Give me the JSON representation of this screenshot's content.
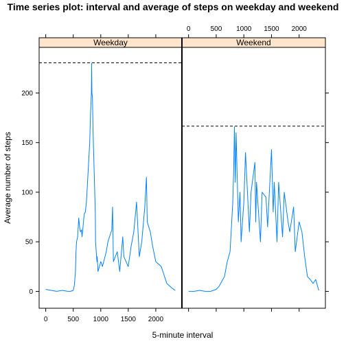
{
  "chart_data": {
    "type": "line",
    "title": "Time series plot: interval and average of steps on weekday and weekend",
    "xlabel": "5-minute interval",
    "ylabel": "Average number of steps",
    "xlim": [
      -120,
      2475
    ],
    "ylim": [
      -17,
      246
    ],
    "x_ticks": [
      0,
      500,
      1000,
      1500,
      2000
    ],
    "y_ticks": [
      0,
      50,
      100,
      150,
      200
    ],
    "x_tick_labels": [
      "0",
      "500",
      "1000",
      "1500",
      "2000"
    ],
    "y_tick_labels": [
      "0",
      "50",
      "100",
      "150",
      "200"
    ],
    "grid": false,
    "layout": "two panels side by side",
    "line_color": "#0080ff",
    "strip_color": "#ffe5cc",
    "panels": [
      {
        "name": "Weekday",
        "max_line": 230.4,
        "x": [
          0,
          100,
          200,
          300,
          400,
          450,
          500,
          520,
          540,
          550,
          560,
          580,
          600,
          615,
          630,
          650,
          660,
          700,
          720,
          740,
          800,
          815,
          830,
          835,
          840,
          850,
          860,
          900,
          905,
          930,
          935,
          950,
          1000,
          1015,
          1030,
          1100,
          1130,
          1200,
          1215,
          1230,
          1300,
          1345,
          1400,
          1420,
          1500,
          1550,
          1600,
          1650,
          1700,
          1745,
          1800,
          1830,
          1845,
          1900,
          1945,
          2000,
          2100,
          2200,
          2300,
          2355
        ],
        "y": [
          2,
          1,
          0,
          1,
          0,
          0,
          1,
          6,
          20,
          40,
          50,
          55,
          74,
          65,
          60,
          62,
          55,
          78,
          80,
          90,
          150,
          180,
          200,
          230,
          200,
          195,
          160,
          80,
          50,
          30,
          35,
          20,
          30,
          28,
          25,
          40,
          50,
          62,
          85,
          30,
          40,
          20,
          55,
          35,
          25,
          45,
          60,
          90,
          35,
          50,
          85,
          115,
          70,
          60,
          45,
          30,
          25,
          8,
          3,
          1
        ]
      },
      {
        "name": "Weekend",
        "max_line": 166.6,
        "x": [
          0,
          100,
          200,
          300,
          400,
          450,
          500,
          550,
          600,
          650,
          700,
          750,
          800,
          815,
          830,
          845,
          860,
          900,
          930,
          950,
          1000,
          1030,
          1100,
          1130,
          1200,
          1215,
          1230,
          1300,
          1330,
          1400,
          1430,
          1500,
          1530,
          1550,
          1600,
          1630,
          1700,
          1730,
          1800,
          1830,
          1900,
          1930,
          2000,
          2050,
          2100,
          2150,
          2200,
          2250,
          2300,
          2355
        ],
        "y": [
          0,
          0,
          1,
          0,
          0,
          1,
          2,
          5,
          10,
          15,
          30,
          40,
          90,
          120,
          166,
          110,
          160,
          70,
          100,
          50,
          90,
          140,
          60,
          100,
          130,
          70,
          110,
          50,
          100,
          95,
          65,
          143,
          80,
          110,
          50,
          110,
          55,
          100,
          70,
          60,
          85,
          40,
          70,
          60,
          35,
          15,
          12,
          8,
          12,
          1
        ]
      }
    ]
  }
}
